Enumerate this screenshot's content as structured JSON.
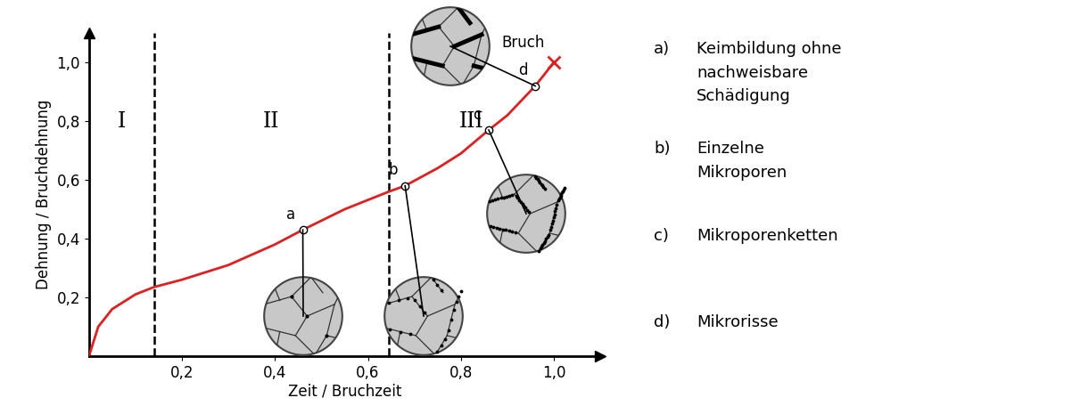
{
  "chart_data": {
    "type": "line",
    "x_label": "Zeit / Bruchzeit",
    "y_label": "Dehnung / Bruchdehnung",
    "xlim": [
      0,
      1.1
    ],
    "ylim": [
      0,
      1.1
    ],
    "xticks": [
      {
        "value": 0.2,
        "label": "0,2"
      },
      {
        "value": 0.4,
        "label": "0,4"
      },
      {
        "value": 0.6,
        "label": "0,6"
      },
      {
        "value": 0.8,
        "label": "0,8"
      },
      {
        "value": 1.0,
        "label": "1,0"
      }
    ],
    "yticks": [
      {
        "value": 0.2,
        "label": "0,2"
      },
      {
        "value": 0.4,
        "label": "0,4"
      },
      {
        "value": 0.6,
        "label": "0,6"
      },
      {
        "value": 0.8,
        "label": "0,8"
      },
      {
        "value": 1.0,
        "label": "1,0"
      }
    ],
    "series": [
      {
        "color": "#e02020",
        "x": [
          0,
          0.02,
          0.05,
          0.1,
          0.14,
          0.2,
          0.3,
          0.4,
          0.46,
          0.55,
          0.645,
          0.68,
          0.75,
          0.8,
          0.86,
          0.9,
          0.96,
          1.0
        ],
        "values": [
          0,
          0.1,
          0.16,
          0.21,
          0.235,
          0.26,
          0.31,
          0.38,
          0.43,
          0.5,
          0.56,
          0.58,
          0.64,
          0.69,
          0.77,
          0.82,
          0.92,
          1.0
        ]
      }
    ],
    "phase_boundaries": [
      0.14,
      0.645
    ],
    "phases": [
      "I",
      "II",
      "III"
    ],
    "points": [
      {
        "marker_label": "a",
        "list_label": "a)",
        "x": 0.46,
        "y": 0.43,
        "description": "Keimbildung ohne nachweisbare Schädigung"
      },
      {
        "marker_label": "b",
        "list_label": "b)",
        "x": 0.68,
        "y": 0.58,
        "description": "Einzelne Mikroporen"
      },
      {
        "marker_label": "c",
        "list_label": "c)",
        "x": 0.86,
        "y": 0.77,
        "description": "Mikroporenketten"
      },
      {
        "marker_label": "d",
        "list_label": "d)",
        "x": 0.96,
        "y": 0.92,
        "description": "Mikrorisse"
      }
    ],
    "fracture": {
      "label": "Bruch",
      "x": 1.0,
      "y": 1.0,
      "marker": "x",
      "color": "#e02020"
    }
  }
}
